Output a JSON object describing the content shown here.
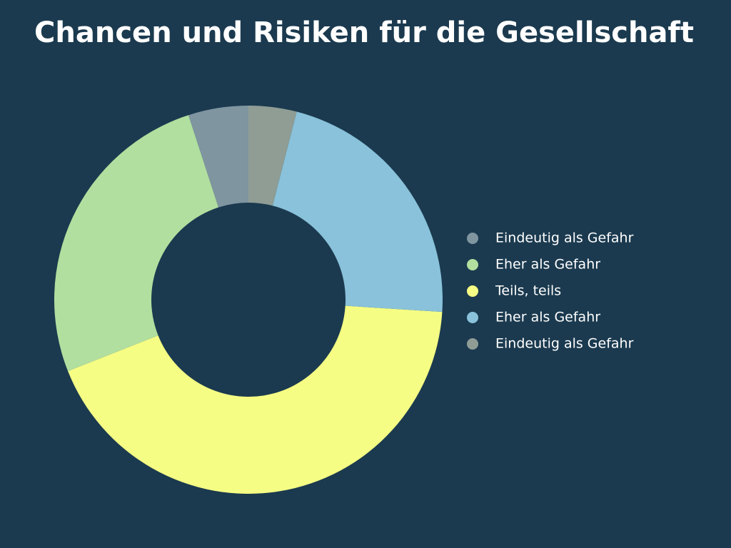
{
  "chart_data": {
    "type": "donut",
    "title": "Chancen und Risiken für die Gesellschaft",
    "categories": [
      "Eindeutig als Gefahr",
      "Eher als Gefahr",
      "Teils, teils",
      "Eher als Gefahr",
      "Eindeutig als Gefahr"
    ],
    "values": [
      5,
      26,
      43,
      22,
      4
    ],
    "colors": [
      "#7f95a0",
      "#b1df9f",
      "#f5fd84",
      "#89c2da",
      "#8f9d95"
    ],
    "direction": "counterclockwise",
    "legend": "right"
  }
}
